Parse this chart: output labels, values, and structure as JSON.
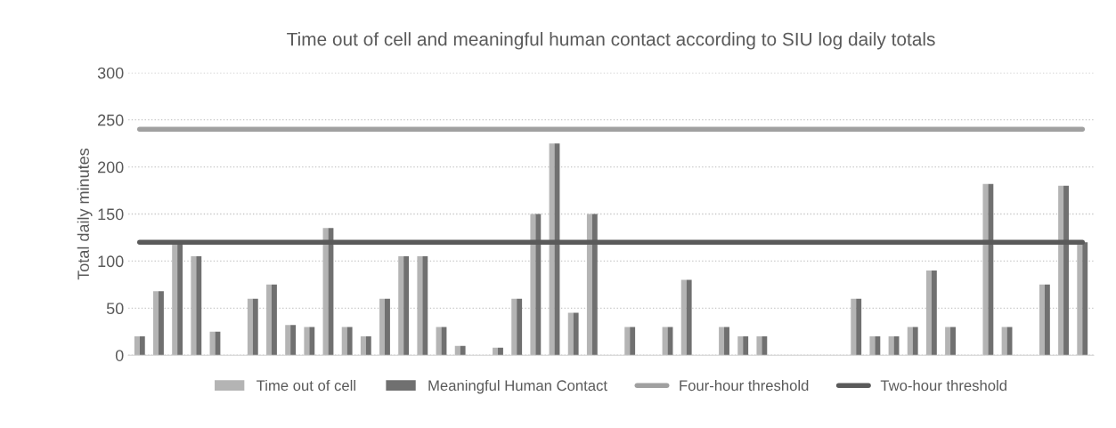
{
  "chart_data": {
    "type": "bar",
    "title": "Time out of cell and meaningful human contact according to SIU log daily totals",
    "ylabel": "Total daily minutes",
    "categories": [
      null,
      null,
      null,
      null,
      null,
      null,
      null,
      null,
      null,
      null,
      null,
      null,
      null,
      null,
      null,
      null,
      null,
      null,
      null,
      null,
      null,
      null,
      null,
      null,
      null,
      null,
      null,
      null,
      null,
      null,
      null,
      null,
      null,
      null,
      null,
      null,
      null,
      null,
      null,
      null,
      null,
      null,
      null,
      null,
      null,
      null,
      null,
      null,
      null,
      null,
      null
    ],
    "series": [
      {
        "name": "Time out of cell",
        "color": "#b4b4b4",
        "values": [
          20,
          68,
          120,
          105,
          25,
          0,
          60,
          75,
          32,
          30,
          135,
          30,
          20,
          60,
          105,
          105,
          30,
          10,
          0,
          8,
          60,
          150,
          225,
          45,
          150,
          0,
          30,
          0,
          30,
          80,
          0,
          30,
          20,
          20,
          0,
          0,
          0,
          0,
          60,
          20,
          20,
          30,
          90,
          30,
          0,
          182,
          30,
          0,
          75,
          180,
          120
        ]
      },
      {
        "name": "Meaningful Human Contact",
        "color": "#707070",
        "values": [
          20,
          68,
          120,
          105,
          25,
          0,
          60,
          75,
          32,
          30,
          135,
          30,
          20,
          60,
          105,
          105,
          30,
          10,
          0,
          8,
          60,
          150,
          225,
          45,
          150,
          0,
          30,
          0,
          30,
          80,
          0,
          30,
          20,
          20,
          0,
          0,
          0,
          0,
          60,
          20,
          20,
          30,
          90,
          30,
          0,
          182,
          30,
          0,
          75,
          180,
          120
        ]
      },
      {
        "name": "Four-hour threshold",
        "type": "line",
        "color": "#a0a0a0",
        "values": [
          240,
          240,
          240,
          240,
          240,
          240,
          240,
          240,
          240,
          240,
          240,
          240,
          240,
          240,
          240,
          240,
          240,
          240,
          240,
          240,
          240,
          240,
          240,
          240,
          240,
          240,
          240,
          240,
          240,
          240,
          240,
          240,
          240,
          240,
          240,
          240,
          240,
          240,
          240,
          240,
          240,
          240,
          240,
          240,
          240,
          240,
          240,
          240,
          240,
          240,
          240
        ]
      },
      {
        "name": "Two-hour threshold",
        "type": "line",
        "color": "#5a5a5a",
        "values": [
          120,
          120,
          120,
          120,
          120,
          120,
          120,
          120,
          120,
          120,
          120,
          120,
          120,
          120,
          120,
          120,
          120,
          120,
          120,
          120,
          120,
          120,
          120,
          120,
          120,
          120,
          120,
          120,
          120,
          120,
          120,
          120,
          120,
          120,
          120,
          120,
          120,
          120,
          120,
          120,
          120,
          120,
          120,
          120,
          120,
          120,
          120,
          120,
          120,
          120,
          120
        ]
      }
    ],
    "ylim": [
      0,
      300
    ],
    "yticks": [
      0,
      50,
      100,
      150,
      200,
      250,
      300
    ],
    "grid": "y",
    "legend": "bottom",
    "marker": "none",
    "line_style": "solid"
  }
}
